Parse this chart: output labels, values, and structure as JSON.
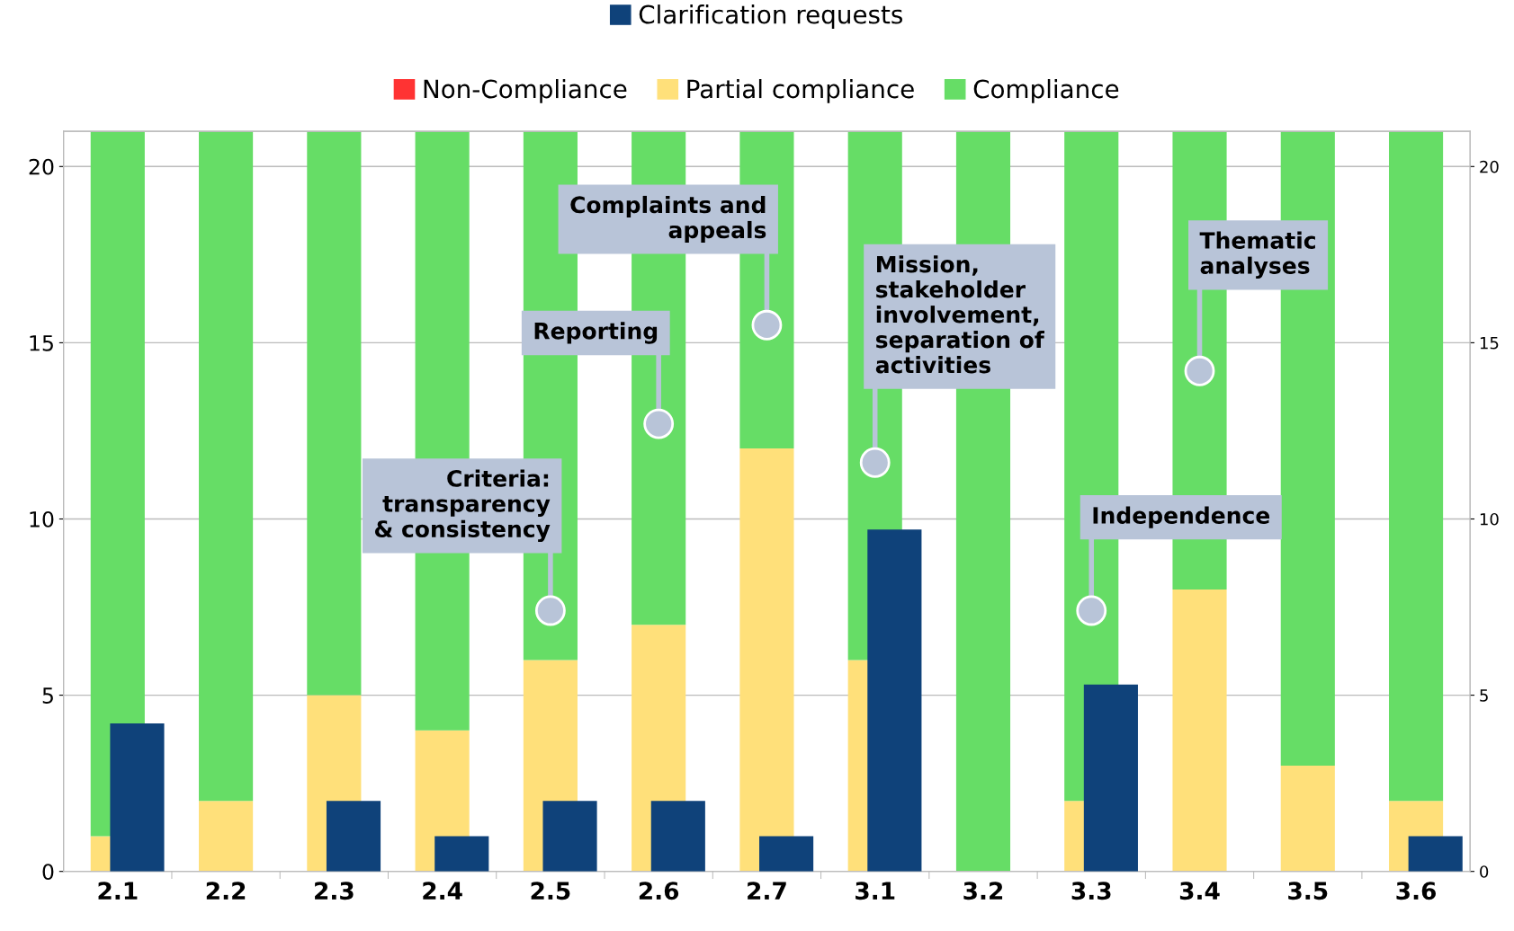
{
  "chart_data": {
    "type": "bar",
    "stacked": true,
    "categories": [
      "2.1",
      "2.2",
      "2.3",
      "2.4",
      "2.5",
      "2.6",
      "2.7",
      "3.1",
      "3.2",
      "3.3",
      "3.4",
      "3.5",
      "3.6"
    ],
    "series": [
      {
        "name": "Non-Compliance",
        "color": "#ff3333",
        "values": [
          0,
          0,
          0,
          0,
          0,
          0,
          0,
          0,
          0,
          0,
          0,
          0,
          0
        ]
      },
      {
        "name": "Partial compliance",
        "color": "#ffe07a",
        "values": [
          1,
          2,
          5,
          4,
          6,
          7,
          12,
          6,
          0,
          2,
          8,
          3,
          2
        ]
      },
      {
        "name": "Compliance",
        "color": "#66dd66",
        "values": [
          20,
          19,
          16,
          17,
          15,
          14,
          9,
          15,
          21,
          19,
          13,
          18,
          19
        ]
      },
      {
        "name": "Clarification requests",
        "color": "#0f427a",
        "axis": "y2",
        "values": [
          4.2,
          null,
          2,
          1,
          2,
          2,
          1,
          9.7,
          null,
          5.3,
          null,
          null,
          1
        ]
      }
    ],
    "ylim": [
      0,
      21
    ],
    "yticks": [
      0,
      5,
      10,
      15,
      20
    ],
    "y2lim": [
      0,
      21
    ],
    "y2ticks": [
      0,
      5,
      10,
      15,
      20
    ],
    "grid": "y",
    "legend": "top",
    "annotations": [
      {
        "text": "Criteria:\ntransparency\n& consistency",
        "x": "2.5",
        "y": 7.4
      },
      {
        "text": "Reporting",
        "x": "2.6",
        "y": 12.7
      },
      {
        "text": "Complaints and\nappeals",
        "x": "2.7",
        "y": 15.5
      },
      {
        "text": "Mission,\nstakeholder\ninvolvement,\nseparation of\nactivities",
        "x": "3.1",
        "y": 11.6
      },
      {
        "text": "Independence",
        "x": "3.3",
        "y": 7.4
      },
      {
        "text": "Thematic\nanalyses",
        "x": "3.4",
        "y": 14.2
      }
    ]
  }
}
